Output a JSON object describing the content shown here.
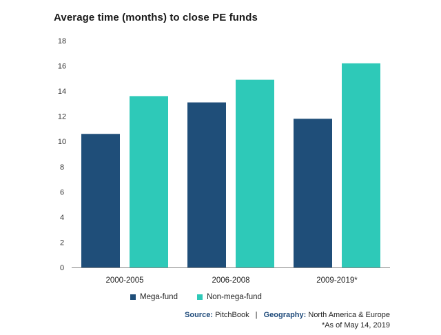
{
  "chart_data": {
    "type": "bar",
    "title": "Average time (months) to close PE funds",
    "categories": [
      "2000-2005",
      "2006-2008",
      "2009-2019*"
    ],
    "series": [
      {
        "name": "Mega-fund",
        "values": [
          10.6,
          13.1,
          11.8
        ],
        "color": "#1f4e79"
      },
      {
        "name": "Non-mega-fund",
        "values": [
          13.6,
          14.9,
          16.2
        ],
        "color": "#2ec9b8"
      }
    ],
    "ylim": [
      0,
      18
    ],
    "yticks": [
      "0",
      "2",
      "4",
      "6",
      "8",
      "10",
      "12",
      "14",
      "16",
      "18"
    ],
    "grid": false,
    "legend_position": "bottom"
  },
  "source": {
    "source_label": "Source:",
    "source_value": "PitchBook",
    "separator": "|",
    "geo_label": "Geography:",
    "geo_value": "North America & Europe",
    "note": "*As of May 14, 2019"
  }
}
